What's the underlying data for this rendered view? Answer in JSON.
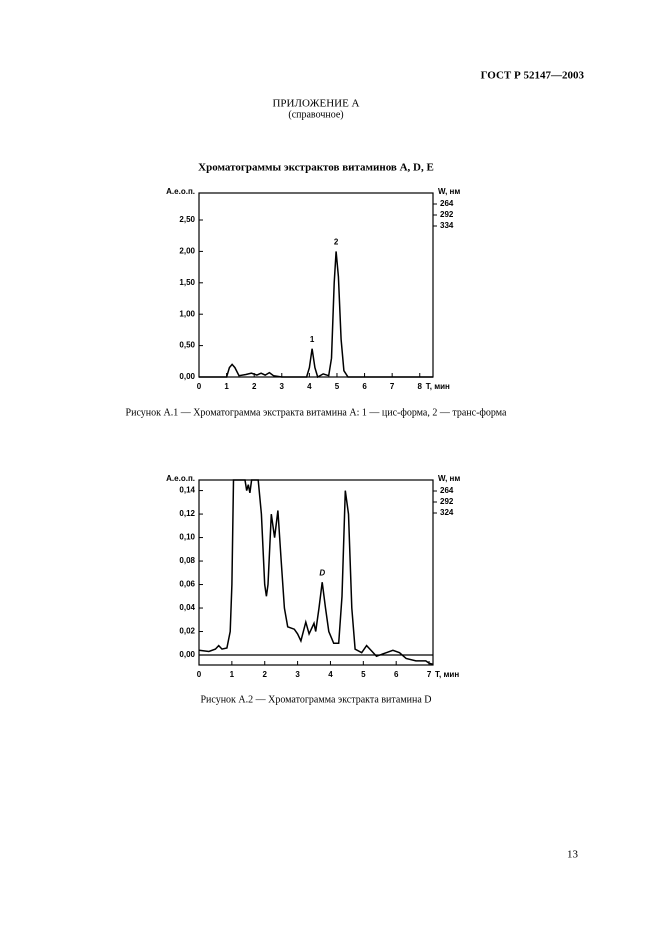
{
  "header": {
    "code": "ГОСТ Р 52147—2003"
  },
  "appendix": {
    "title": "ПРИЛОЖЕНИЕ А",
    "note": "(справочное)"
  },
  "section_title": "Хроматограммы экстрактов витаминов А, D, E",
  "page_number": "13",
  "chart_data": [
    {
      "type": "line",
      "caption": "Рисунок А.1 — Хроматограмма экстракта витамина А: 1 — цис-форма, 2 — транс-форма",
      "ylabel": "А.е.о.п.",
      "xlabel": "T, мин",
      "y2label": "W, нм",
      "wavelengths": [
        "264",
        "292",
        "334"
      ],
      "xlim": [
        0,
        8.48
      ],
      "ylim": [
        0,
        2.93
      ],
      "xticks": [
        0,
        1,
        2,
        3,
        4,
        5,
        6,
        7,
        8
      ],
      "yticks": [
        {
          "value": 0,
          "label": "0,00"
        },
        {
          "value": 0.5,
          "label": "0,50"
        },
        {
          "value": 1,
          "label": "1,00"
        },
        {
          "value": 1.5,
          "label": "1,50"
        },
        {
          "value": 2,
          "label": "2,00"
        },
        {
          "value": 2.5,
          "label": "2,50"
        }
      ],
      "color": "#000000",
      "x": [
        0,
        1.0,
        1.1,
        1.2,
        1.3,
        1.45,
        1.7,
        1.9,
        2.1,
        2.25,
        2.4,
        2.55,
        2.7,
        3.0,
        3.9,
        4.0,
        4.1,
        4.2,
        4.3,
        4.5,
        4.7,
        4.8,
        4.9,
        4.97,
        5.05,
        5.15,
        5.25,
        5.4,
        8.48
      ],
      "values": [
        0,
        0,
        0.15,
        0.2,
        0.15,
        0.02,
        0.04,
        0.06,
        0.03,
        0.06,
        0.03,
        0.07,
        0.02,
        0,
        0,
        0.15,
        0.45,
        0.15,
        0,
        0.05,
        0.02,
        0.3,
        1.5,
        2.0,
        1.6,
        0.6,
        0.1,
        0,
        0
      ],
      "annotations": [
        {
          "text": "1",
          "x": 4.1,
          "y": 0.45
        },
        {
          "text": "2",
          "x": 4.97,
          "y": 2.0
        }
      ]
    },
    {
      "type": "line",
      "caption": "Рисунок А.2 — Хроматограмма экстракта витамина D",
      "ylabel": "А.е.о.п.",
      "xlabel": "T, мин",
      "y2label": "W, нм",
      "wavelengths": [
        "264",
        "292",
        "324"
      ],
      "xlim": [
        0,
        7.12
      ],
      "ylim": [
        -0.0085,
        0.149
      ],
      "xticks": [
        0,
        1,
        2,
        3,
        4,
        5,
        6,
        7
      ],
      "yticks": [
        {
          "value": 0,
          "label": "0,00"
        },
        {
          "value": 0.02,
          "label": "0,02"
        },
        {
          "value": 0.04,
          "label": "0,04"
        },
        {
          "value": 0.06,
          "label": "0,06"
        },
        {
          "value": 0.08,
          "label": "0,08"
        },
        {
          "value": 0.1,
          "label": "0,10"
        },
        {
          "value": 0.12,
          "label": "0,12"
        },
        {
          "value": 0.14,
          "label": "0,14"
        }
      ],
      "color": "#000000",
      "x": [
        0,
        0.3,
        0.5,
        0.6,
        0.7,
        0.85,
        0.95,
        1.0,
        1.05,
        1.4,
        1.45,
        1.5,
        1.55,
        1.6,
        1.8,
        1.9,
        2.0,
        2.05,
        2.1,
        2.2,
        2.3,
        2.4,
        2.5,
        2.6,
        2.7,
        2.9,
        3.0,
        3.1,
        3.25,
        3.35,
        3.5,
        3.55,
        3.65,
        3.75,
        3.85,
        3.95,
        4.1,
        4.25,
        4.35,
        4.45,
        4.55,
        4.65,
        4.75,
        4.95,
        5.1,
        5.2,
        5.4,
        5.7,
        5.9,
        6.1,
        6.3,
        6.6,
        6.9,
        7.0,
        7.12
      ],
      "values": [
        0.004,
        0.003,
        0.005,
        0.008,
        0.005,
        0.006,
        0.02,
        0.06,
        0.149,
        0.149,
        0.14,
        0.145,
        0.138,
        0.149,
        0.149,
        0.12,
        0.06,
        0.05,
        0.06,
        0.12,
        0.1,
        0.123,
        0.08,
        0.04,
        0.024,
        0.022,
        0.018,
        0.012,
        0.028,
        0.018,
        0.027,
        0.02,
        0.04,
        0.062,
        0.04,
        0.02,
        0.01,
        0.01,
        0.05,
        0.14,
        0.12,
        0.04,
        0.005,
        0.002,
        0.008,
        0.005,
        -0.001,
        0.002,
        0.004,
        0.002,
        -0.003,
        -0.005,
        -0.005,
        -0.007,
        -0.008
      ],
      "annotations": [
        {
          "text": "D",
          "x": 3.75,
          "y": 0.062
        }
      ]
    }
  ]
}
